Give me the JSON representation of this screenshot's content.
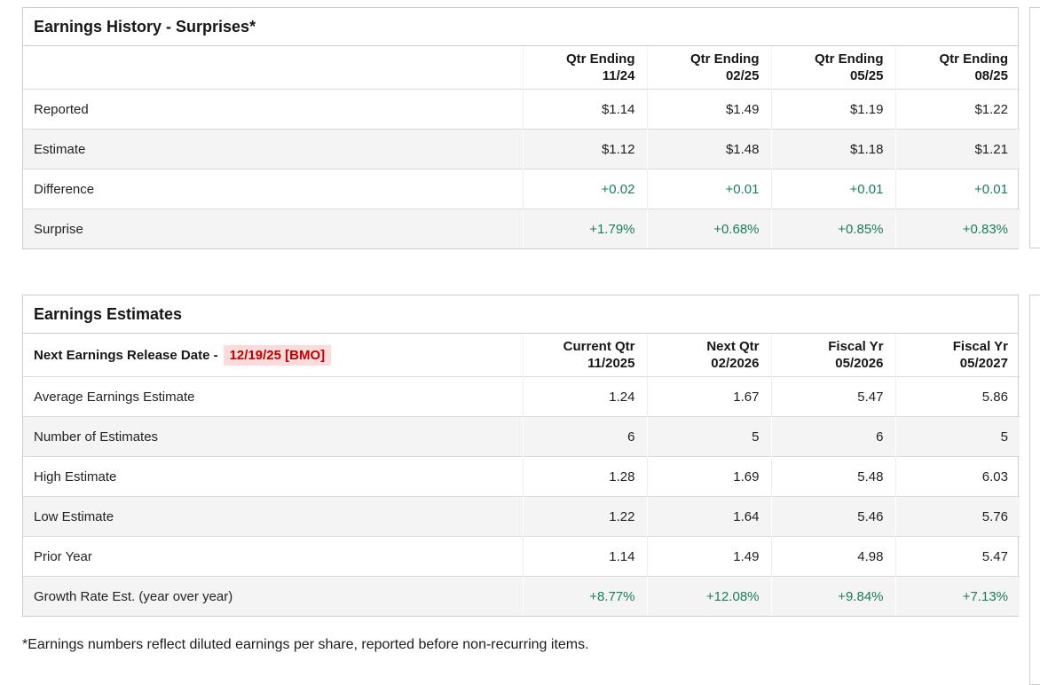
{
  "colors": {
    "positive_text": "#1a7c5c",
    "alert_text": "#c00000",
    "alert_background": "#fbdbdb",
    "alt_row_background": "#f4f4f4",
    "panel_border": "#cccccc"
  },
  "surprises": {
    "title": "Earnings History - Surprises*",
    "columns": [
      {
        "line1": "Qtr Ending",
        "line2": "11/24"
      },
      {
        "line1": "Qtr Ending",
        "line2": "02/25"
      },
      {
        "line1": "Qtr Ending",
        "line2": "05/25"
      },
      {
        "line1": "Qtr Ending",
        "line2": "08/25"
      }
    ],
    "rows": [
      {
        "label": "Reported",
        "values": [
          "$1.14",
          "$1.49",
          "$1.19",
          "$1.22"
        ]
      },
      {
        "label": "Estimate",
        "values": [
          "$1.12",
          "$1.48",
          "$1.18",
          "$1.21"
        ]
      },
      {
        "label": "Difference",
        "values": [
          "+0.02",
          "+0.01",
          "+0.01",
          "+0.01"
        ]
      },
      {
        "label": "Surprise",
        "values": [
          "+1.79%",
          "+0.68%",
          "+0.85%",
          "+0.83%"
        ]
      }
    ]
  },
  "estimates": {
    "title": "Earnings Estimates",
    "release_label": "Next Earnings Release Date -",
    "release_date": "12/19/25 [BMO]",
    "columns": [
      {
        "line1": "Current Qtr",
        "line2": "11/2025"
      },
      {
        "line1": "Next Qtr",
        "line2": "02/2026"
      },
      {
        "line1": "Fiscal Yr",
        "line2": "05/2026"
      },
      {
        "line1": "Fiscal Yr",
        "line2": "05/2027"
      }
    ],
    "rows": [
      {
        "label": "Average Earnings Estimate",
        "values": [
          "1.24",
          "1.67",
          "5.47",
          "5.86"
        ]
      },
      {
        "label": "Number of Estimates",
        "values": [
          "6",
          "5",
          "6",
          "5"
        ]
      },
      {
        "label": "High Estimate",
        "values": [
          "1.28",
          "1.69",
          "5.48",
          "6.03"
        ]
      },
      {
        "label": "Low Estimate",
        "values": [
          "1.22",
          "1.64",
          "5.46",
          "5.76"
        ]
      },
      {
        "label": "Prior Year",
        "values": [
          "1.14",
          "1.49",
          "4.98",
          "5.47"
        ]
      },
      {
        "label": "Growth Rate Est. (year over year)",
        "values": [
          "+8.77%",
          "+12.08%",
          "+9.84%",
          "+7.13%"
        ]
      }
    ]
  },
  "footnote": "*Earnings numbers reflect diluted earnings per share, reported before non-recurring items."
}
